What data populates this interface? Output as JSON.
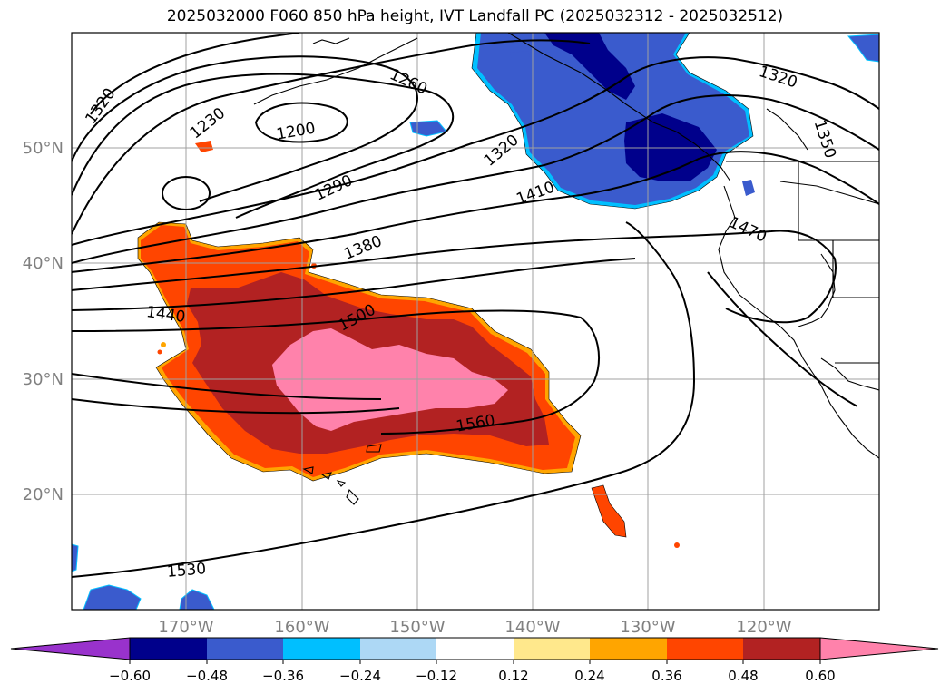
{
  "title": "2025032000 F060 850 hPa height, IVT Landfall PC (2025032312 - 2025032512)",
  "map": {
    "projection": "lat-lon",
    "lon_range": [
      -180,
      -110
    ],
    "lat_range": [
      10,
      60
    ],
    "grid": true,
    "lon_ticks": [
      "170°W",
      "160°W",
      "150°W",
      "140°W",
      "130°W",
      "120°W"
    ],
    "lat_ticks": [
      "20°N",
      "30°N",
      "40°N",
      "50°N"
    ],
    "contour_labels": [
      "1320",
      "1230",
      "1260",
      "1200",
      "1290",
      "1320",
      "1410",
      "1320",
      "1350",
      "1470",
      "1380",
      "1440",
      "1500",
      "1560",
      "1530"
    ]
  },
  "colorbar": {
    "ticks": [
      "−0.60",
      "−0.48",
      "−0.36",
      "−0.24",
      "−0.12",
      "0.12",
      "0.24",
      "0.36",
      "0.48",
      "0.60"
    ],
    "colors": [
      "#9932cc",
      "#00008b",
      "#3a5bcd",
      "#00bfff",
      "#add8f5",
      "#ffffff",
      "#ffe88c",
      "#ffa500",
      "#ff4500",
      "#b22222",
      "#ff82ab"
    ],
    "extend": "both"
  },
  "colors": {
    "strong_positive": "#ff82ab",
    "moderate_positive": "#b22222",
    "weak_positive": "#ff4500",
    "negative_blue": "#3a5bcd",
    "strong_negative": "#00008b"
  }
}
